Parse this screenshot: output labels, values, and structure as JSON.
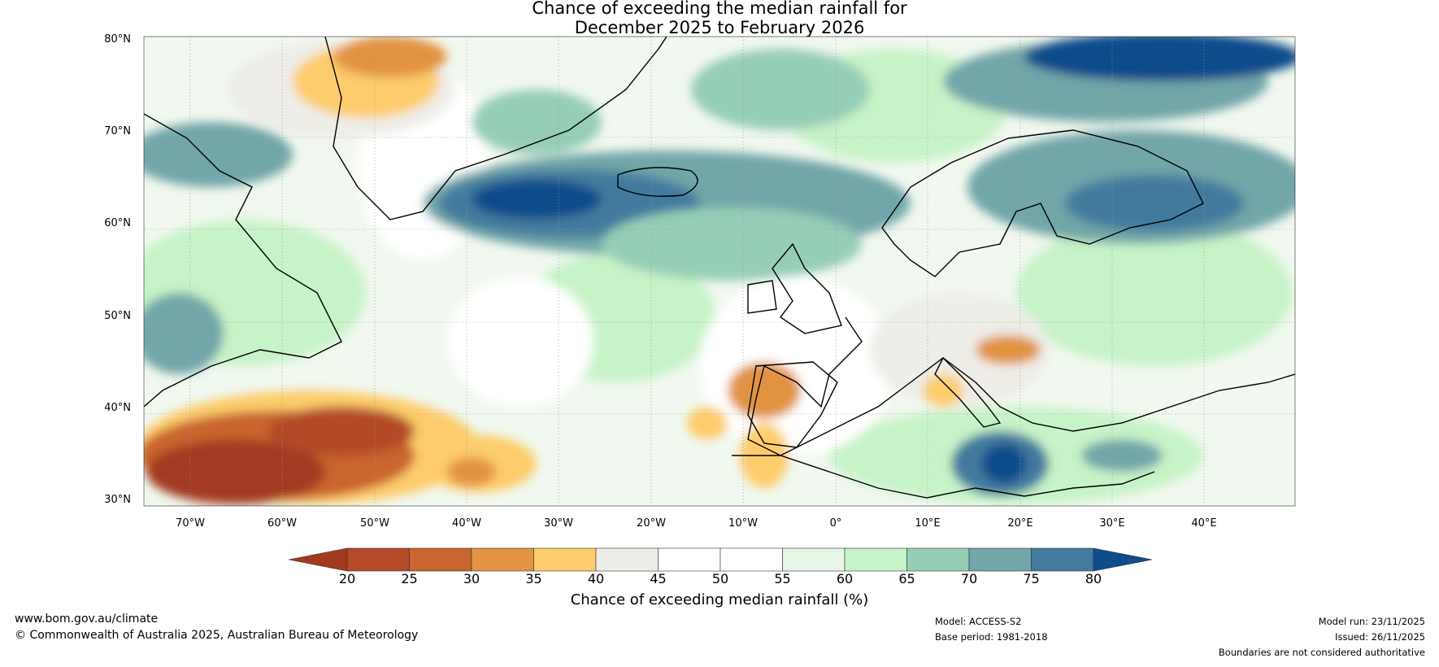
{
  "title_line1": "Chance of exceeding the median rainfall for",
  "title_line2": "December 2025 to February 2026",
  "lat_labels": [
    "80°N",
    "70°N",
    "60°N",
    "50°N",
    "40°N",
    "30°N"
  ],
  "lon_labels": [
    "70°W",
    "60°W",
    "50°W",
    "40°W",
    "30°W",
    "20°W",
    "10°W",
    "0°",
    "10°E",
    "20°E",
    "30°E",
    "40°E"
  ],
  "colorbar": {
    "ticks": [
      "20",
      "25",
      "30",
      "35",
      "40",
      "45",
      "50",
      "55",
      "60",
      "65",
      "70",
      "75",
      "80"
    ],
    "colors": [
      "#a33a20",
      "#b34a28",
      "#c9652f",
      "#e29343",
      "#fdcc6c",
      "#eeede8",
      "#ffffff",
      "#ffffff",
      "#e8f6e8",
      "#c7f3c8",
      "#96cdb6",
      "#72a6a9",
      "#437a9e",
      "#0f4c8a"
    ],
    "label": "Chance of exceeding median rainfall (%)"
  },
  "footer": {
    "website": "www.bom.gov.au/climate",
    "copyright": "© Commonwealth of Australia 2025, Australian Bureau of Meteorology",
    "model": "Model: ACCESS-S2",
    "base_period": "Base period: 1981-2018",
    "model_run": "Model run: 23/11/2025",
    "issued": "Issued: 26/11/2025",
    "disclaimer": "Boundaries are not considered authoritative"
  }
}
